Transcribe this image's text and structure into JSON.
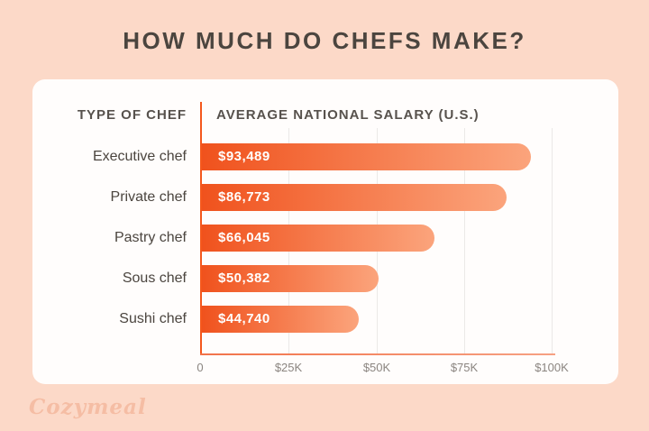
{
  "page": {
    "title": "HOW MUCH DO CHEFS MAKE?",
    "brand_logo": "Cozymeal"
  },
  "table_headers": {
    "left": "TYPE OF CHEF",
    "right": "AVERAGE NATIONAL SALARY (U.S.)"
  },
  "chart_data": {
    "type": "bar",
    "orientation": "horizontal",
    "title": "HOW MUCH DO CHEFS MAKE?",
    "categories": [
      "Executive chef",
      "Private chef",
      "Pastry chef",
      "Sous chef",
      "Sushi chef"
    ],
    "values": [
      93489,
      86773,
      66045,
      50382,
      44740
    ],
    "value_labels": [
      "$93,489",
      "$86,773",
      "$66,045",
      "$50,382",
      "$44,740"
    ],
    "x_ticks": [
      "0",
      "$25K",
      "$50K",
      "$75K",
      "$100K"
    ],
    "xlabel": "",
    "ylabel": "",
    "xlim": [
      0,
      100000
    ],
    "grid": true,
    "legend": false,
    "bar_color_start": "#f0521d",
    "bar_color_end": "#fba47c"
  },
  "colors": {
    "background": "#fcd9c8",
    "card": "#fffdfc",
    "title_text": "#4b453f",
    "header_text": "#57524d",
    "label_text": "#4b453f",
    "value_text": "#ffffff",
    "axis_vertical": "#f4571c",
    "axis_horizontal": "#f2734a",
    "gridline": "#ebe9e7",
    "tick_text": "#8b8580",
    "logo_text": "#f5bda4"
  }
}
